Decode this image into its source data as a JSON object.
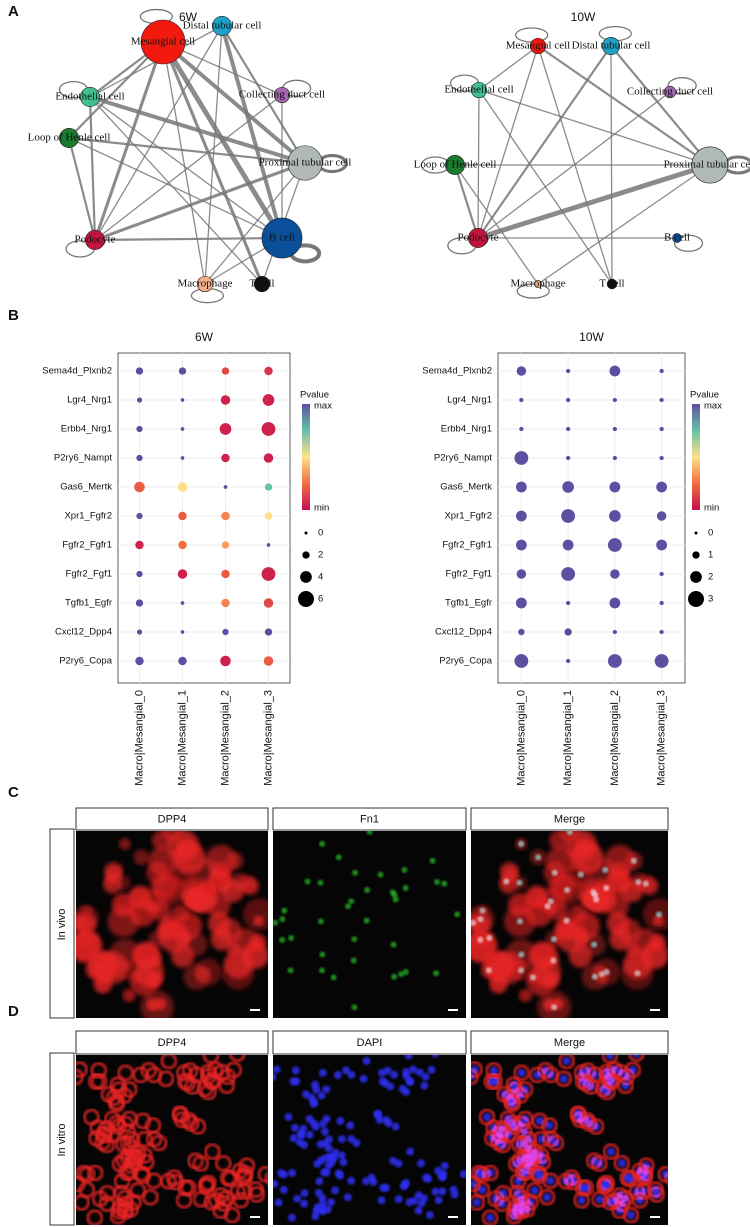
{
  "panel_labels": [
    "A",
    "B",
    "C",
    "D"
  ],
  "networks": [
    {
      "title": "6W",
      "nodes": [
        {
          "label": "Mesangial cell",
          "size": 10,
          "color": "#f21a0e"
        },
        {
          "label": "Distal tubular cell",
          "size": 3.5,
          "color": "#1fa0c8"
        },
        {
          "label": "Collecting duct cell",
          "size": 2.5,
          "color": "#a565b0"
        },
        {
          "label": "Proximal tubular cell",
          "size": 7.5,
          "color": "#b0b8b8"
        },
        {
          "label": "B cell",
          "size": 9,
          "color": "#0b4f9a"
        },
        {
          "label": "T cell",
          "size": 2.5,
          "color": "#111111"
        },
        {
          "label": "Macrophage",
          "size": 2.5,
          "color": "#f5b08a"
        },
        {
          "label": "Podocyte",
          "size": 3.5,
          "color": "#c0143c"
        },
        {
          "label": "Loop of Henle cell",
          "size": 3.5,
          "color": "#1a7a2e"
        },
        {
          "label": "Endothelial cell",
          "size": 3.5,
          "color": "#40c090"
        }
      ],
      "edges": [
        [
          0,
          4,
          5
        ],
        [
          0,
          3,
          4
        ],
        [
          0,
          7,
          3
        ],
        [
          0,
          5,
          3
        ],
        [
          1,
          4,
          4
        ],
        [
          1,
          3,
          2
        ],
        [
          9,
          3,
          4
        ],
        [
          9,
          7,
          2
        ],
        [
          8,
          3,
          2
        ],
        [
          7,
          4,
          2
        ],
        [
          7,
          3,
          3
        ],
        [
          6,
          4,
          1
        ],
        [
          8,
          4,
          1
        ],
        [
          9,
          5,
          1
        ],
        [
          2,
          7,
          1
        ],
        [
          0,
          6,
          1
        ],
        [
          0,
          8,
          2
        ],
        [
          1,
          7,
          1
        ],
        [
          9,
          4,
          1
        ],
        [
          2,
          4,
          1
        ],
        [
          5,
          3,
          1
        ],
        [
          8,
          7,
          2
        ],
        [
          0,
          9,
          2
        ],
        [
          3,
          6,
          1
        ],
        [
          1,
          6,
          1
        ],
        [
          0,
          2,
          1
        ],
        [
          9,
          1,
          1
        ],
        [
          4,
          4,
          4
        ],
        [
          3,
          3,
          3
        ],
        [
          0,
          0,
          1
        ],
        [
          7,
          7,
          1
        ],
        [
          9,
          9,
          1
        ],
        [
          6,
          6,
          1
        ],
        [
          2,
          2,
          1
        ]
      ]
    },
    {
      "title": "10W",
      "nodes": [
        {
          "label": "Mesangial cell",
          "size": 2.5,
          "color": "#f21a0e"
        },
        {
          "label": "Distal tubular cell",
          "size": 3,
          "color": "#1fa0c8"
        },
        {
          "label": "Collecting duct cell",
          "size": 1.5,
          "color": "#a565b0"
        },
        {
          "label": "Proximal tubular cell",
          "size": 8,
          "color": "#b0b8b8"
        },
        {
          "label": "B cell",
          "size": 0.8,
          "color": "#0b4f9a"
        },
        {
          "label": "T cell",
          "size": 1,
          "color": "#111111"
        },
        {
          "label": "Macrophage",
          "size": 0.3,
          "color": "#f5b08a"
        },
        {
          "label": "Podocyte",
          "size": 3.5,
          "color": "#c0143c"
        },
        {
          "label": "Loop of Henle cell",
          "size": 3.5,
          "color": "#1a7a2e"
        },
        {
          "label": "Endothelial cell",
          "size": 2.5,
          "color": "#40c090"
        }
      ],
      "edges": [
        [
          7,
          3,
          5
        ],
        [
          0,
          3,
          2
        ],
        [
          1,
          7,
          2
        ],
        [
          0,
          7,
          1
        ],
        [
          8,
          3,
          1
        ],
        [
          9,
          3,
          1
        ],
        [
          7,
          4,
          1
        ],
        [
          1,
          3,
          2
        ],
        [
          9,
          7,
          1
        ],
        [
          0,
          5,
          1
        ],
        [
          8,
          7,
          2
        ],
        [
          6,
          3,
          1
        ],
        [
          2,
          7,
          1
        ],
        [
          1,
          5,
          1
        ],
        [
          0,
          9,
          1
        ],
        [
          8,
          6,
          1
        ],
        [
          9,
          5,
          1
        ],
        [
          3,
          3,
          3
        ],
        [
          4,
          4,
          1
        ],
        [
          7,
          7,
          1
        ],
        [
          6,
          6,
          1
        ],
        [
          0,
          0,
          1
        ],
        [
          9,
          9,
          1
        ],
        [
          8,
          8,
          1
        ],
        [
          2,
          2,
          1
        ],
        [
          1,
          1,
          1
        ]
      ]
    }
  ],
  "dotplots": [
    {
      "title": "6W",
      "rows": [
        "Sema4d_Plxnb2",
        "Lgr4_Nrg1",
        "Erbb4_Nrg1",
        "P2ry6_Nampt",
        "Gas6_Mertk",
        "Xpr1_Fgfr2",
        "Fgfr2_Fgfr1",
        "Fgfr2_Fgf1",
        "Tgfb1_Egfr",
        "Cxcl12_Dpp4",
        "P2ry6_Copa"
      ],
      "columns": [
        "Macro|Mesangial_0",
        "Macro|Mesangial_1",
        "Macro|Mesangial_2",
        "Macro|Mesangial_3"
      ],
      "sizes": [
        [
          2,
          2,
          2,
          2.5
        ],
        [
          1,
          0.3,
          3,
          4
        ],
        [
          1.5,
          0.3,
          4,
          5
        ],
        [
          1.5,
          0.3,
          2.5,
          3
        ],
        [
          3.5,
          3,
          0.3,
          2
        ],
        [
          1.5,
          2.5,
          2.5,
          2
        ],
        [
          2.5,
          2.5,
          2,
          0.3
        ],
        [
          1.5,
          3,
          2.5,
          5
        ],
        [
          2,
          0.3,
          2.5,
          3
        ],
        [
          1,
          0.3,
          1.5,
          2
        ],
        [
          2.5,
          2.5,
          3.5,
          3
        ]
      ],
      "pvalues": [
        [
          1,
          1,
          0.15,
          0.1
        ],
        [
          1,
          1,
          0.05,
          0.05
        ],
        [
          1,
          1,
          0.05,
          0.05
        ],
        [
          1,
          1,
          0.05,
          0.05
        ],
        [
          0.2,
          0.5,
          1,
          0.75
        ],
        [
          1,
          0.2,
          0.3,
          0.5
        ],
        [
          0.05,
          0.25,
          0.35,
          1
        ],
        [
          1,
          0.05,
          0.2,
          0.05
        ],
        [
          1,
          1,
          0.3,
          0.15
        ],
        [
          1,
          1,
          1,
          1
        ],
        [
          1,
          1,
          0.05,
          0.2
        ]
      ],
      "legend_title": "Pvalue",
      "color_max": "max",
      "color_min": "min",
      "size_legend": [
        0,
        2,
        4,
        6
      ]
    },
    {
      "title": "10W",
      "rows": [
        "Sema4d_Plxnb2",
        "Lgr4_Nrg1",
        "Erbb4_Nrg1",
        "P2ry6_Nampt",
        "Gas6_Mertk",
        "Xpr1_Fgfr2",
        "Fgfr2_Fgfr1",
        "Fgfr2_Fgf1",
        "Tgfb1_Egfr",
        "Cxcl12_Dpp4",
        "P2ry6_Copa"
      ],
      "columns": [
        "Macro|Mesangial_0",
        "Macro|Mesangial_1",
        "Macro|Mesangial_2",
        "Macro|Mesangial_3"
      ],
      "sizes": [
        [
          1.5,
          0.3,
          1.8,
          0.3
        ],
        [
          0.3,
          0.3,
          0.3,
          0.3
        ],
        [
          0.3,
          0.3,
          0.3,
          0.3
        ],
        [
          2.5,
          0.3,
          0.3,
          0.3
        ],
        [
          1.8,
          2,
          1.8,
          1.8
        ],
        [
          1.8,
          2.5,
          2,
          1.5
        ],
        [
          1.8,
          1.8,
          2.5,
          1.8
        ],
        [
          1.5,
          2.5,
          1.5,
          0.3
        ],
        [
          1.8,
          0.3,
          1.8,
          0.3
        ],
        [
          0.8,
          1,
          0.3,
          0.3
        ],
        [
          2.5,
          0.3,
          2.5,
          2.5
        ]
      ],
      "pvalues": [
        [
          1,
          1,
          1,
          1
        ],
        [
          1,
          1,
          1,
          1
        ],
        [
          1,
          1,
          1,
          1
        ],
        [
          1,
          1,
          1,
          1
        ],
        [
          1,
          1,
          1,
          1
        ],
        [
          1,
          1,
          1,
          1
        ],
        [
          1,
          1,
          1,
          1
        ],
        [
          1,
          1,
          1,
          1
        ],
        [
          1,
          1,
          1,
          1
        ],
        [
          1,
          1,
          1,
          1
        ],
        [
          1,
          1,
          1,
          1
        ]
      ],
      "legend_title": "Pvalue",
      "color_max": "max",
      "color_min": "min",
      "size_legend": [
        0,
        1,
        2,
        3
      ]
    }
  ],
  "imaging": [
    {
      "row_label": "In vivo",
      "images": [
        {
          "label": "DPP4",
          "tints": [
            "#e82020"
          ]
        },
        {
          "label": "Fn1",
          "tints": [
            "#22c422"
          ]
        },
        {
          "label": "Merge",
          "tints": [
            "#e82020",
            "#22c422",
            "#3030d0"
          ]
        }
      ]
    },
    {
      "row_label": "In vitro",
      "images": [
        {
          "label": "DPP4",
          "tints": [
            "#e82020"
          ]
        },
        {
          "label": "DAPI",
          "tints": [
            "#2828f0"
          ]
        },
        {
          "label": "Merge",
          "tints": [
            "#e82020",
            "#2828f0"
          ]
        }
      ]
    }
  ]
}
